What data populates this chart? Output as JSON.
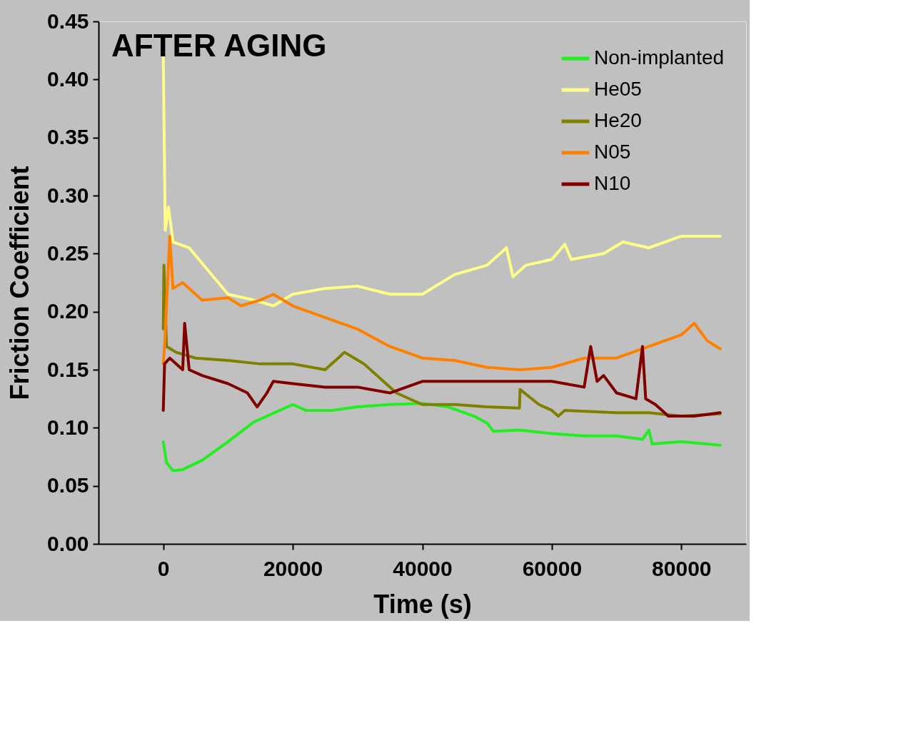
{
  "chart_data": {
    "type": "line",
    "xlabel": "Time (s)",
    "ylabel": "Friction Coefficient",
    "annotations": [
      "AFTER AGING"
    ],
    "xlim": [
      -10000,
      90000
    ],
    "xticks": [
      0,
      20000,
      40000,
      60000,
      80000
    ],
    "ylim": [
      0,
      0.45
    ],
    "yticks": [
      {
        "value": 0,
        "label": "0.00"
      },
      {
        "value": 0.05,
        "label": "0.05"
      },
      {
        "value": 0.1,
        "label": "0.10"
      },
      {
        "value": 0.15,
        "label": "0.15"
      },
      {
        "value": 0.2,
        "label": "0.20"
      },
      {
        "value": 0.25,
        "label": "0.25"
      },
      {
        "value": 0.3,
        "label": "0.30"
      },
      {
        "value": 0.35,
        "label": "0.35"
      },
      {
        "value": 0.4,
        "label": "0.40"
      },
      {
        "value": 0.45,
        "label": "0.45"
      }
    ],
    "grid": false,
    "legend": "top right",
    "marker": "none",
    "line_style": "solid",
    "series": [
      {
        "name": "Non-implanted",
        "color": "#22ee22",
        "x": [
          0,
          500,
          1500,
          3000,
          6000,
          10000,
          14000,
          18000,
          20000,
          22000,
          26000,
          30000,
          35000,
          40000,
          44000,
          48000,
          50000,
          51000,
          55000,
          60000,
          65000,
          70000,
          74000,
          75000,
          75500,
          80000,
          86000
        ],
        "values": [
          0.088,
          0.07,
          0.063,
          0.064,
          0.072,
          0.088,
          0.105,
          0.115,
          0.12,
          0.115,
          0.115,
          0.118,
          0.12,
          0.121,
          0.118,
          0.11,
          0.104,
          0.097,
          0.098,
          0.095,
          0.093,
          0.093,
          0.09,
          0.098,
          0.086,
          0.088,
          0.085
        ]
      },
      {
        "name": "He05",
        "color": "#ffff88",
        "x": [
          0,
          300,
          800,
          1500,
          4000,
          7000,
          10000,
          14000,
          17000,
          20000,
          25000,
          30000,
          35000,
          40000,
          45000,
          50000,
          53000,
          54000,
          56000,
          60000,
          62000,
          63000,
          68000,
          71000,
          75000,
          80000,
          86000
        ],
        "values": [
          0.42,
          0.27,
          0.29,
          0.26,
          0.255,
          0.235,
          0.215,
          0.21,
          0.205,
          0.215,
          0.22,
          0.222,
          0.215,
          0.215,
          0.232,
          0.24,
          0.255,
          0.23,
          0.24,
          0.245,
          0.258,
          0.245,
          0.25,
          0.26,
          0.255,
          0.265,
          0.265
        ]
      },
      {
        "name": "He20",
        "color": "#808000",
        "x": [
          0,
          100,
          500,
          2000,
          5000,
          10000,
          15000,
          20000,
          25000,
          28000,
          31000,
          34000,
          36000,
          40000,
          45000,
          50000,
          55000,
          55100,
          58000,
          60000,
          61000,
          62000,
          70000,
          75000,
          80000,
          86000
        ],
        "values": [
          0.185,
          0.24,
          0.17,
          0.165,
          0.16,
          0.158,
          0.155,
          0.155,
          0.15,
          0.165,
          0.155,
          0.14,
          0.13,
          0.12,
          0.12,
          0.118,
          0.117,
          0.133,
          0.12,
          0.115,
          0.11,
          0.115,
          0.113,
          0.113,
          0.11,
          0.112
        ]
      },
      {
        "name": "N05",
        "color": "#ff8000",
        "x": [
          0,
          300,
          1000,
          1500,
          3000,
          6000,
          10000,
          12000,
          15000,
          17000,
          20000,
          25000,
          30000,
          35000,
          40000,
          45000,
          50000,
          55000,
          60000,
          65000,
          70000,
          75000,
          80000,
          82000,
          84000,
          86000
        ],
        "values": [
          0.155,
          0.18,
          0.265,
          0.22,
          0.225,
          0.21,
          0.212,
          0.205,
          0.21,
          0.215,
          0.205,
          0.195,
          0.185,
          0.17,
          0.16,
          0.158,
          0.152,
          0.15,
          0.152,
          0.16,
          0.16,
          0.17,
          0.18,
          0.19,
          0.175,
          0.168
        ]
      },
      {
        "name": "N10",
        "color": "#800000",
        "x": [
          0,
          200,
          1000,
          3000,
          3300,
          4000,
          6000,
          10000,
          13000,
          14500,
          16000,
          17000,
          20000,
          25000,
          30000,
          35000,
          40000,
          45000,
          50000,
          55000,
          60000,
          65000,
          66000,
          67000,
          68000,
          70000,
          73000,
          74000,
          74500,
          76000,
          78000,
          82000,
          86000
        ],
        "values": [
          0.115,
          0.155,
          0.16,
          0.15,
          0.19,
          0.15,
          0.145,
          0.138,
          0.13,
          0.118,
          0.13,
          0.14,
          0.138,
          0.135,
          0.135,
          0.13,
          0.14,
          0.14,
          0.14,
          0.14,
          0.14,
          0.135,
          0.17,
          0.14,
          0.145,
          0.13,
          0.125,
          0.17,
          0.125,
          0.12,
          0.11,
          0.11,
          0.113
        ]
      }
    ]
  }
}
